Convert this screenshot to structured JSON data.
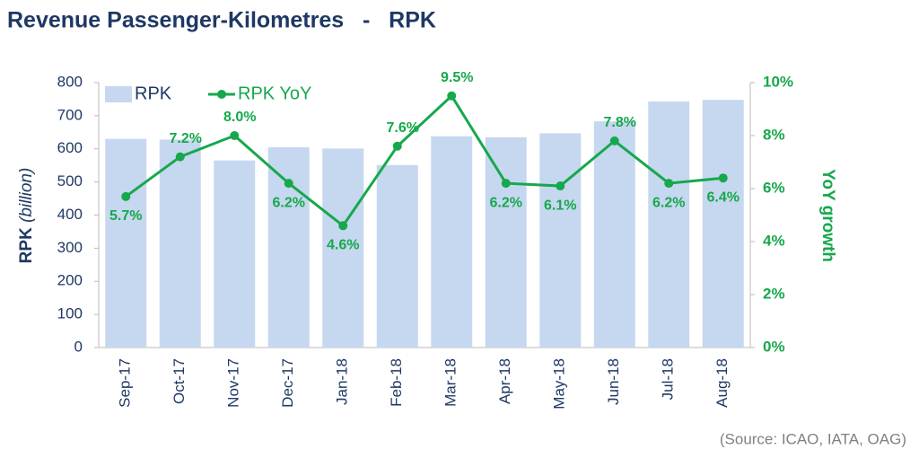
{
  "chart_data": {
    "type": "bar_line",
    "title": "Revenue Passenger-Kilometres   -   RPK",
    "categories": [
      "Sep-17",
      "Oct-17",
      "Nov-17",
      "Dec-17",
      "Jan-18",
      "Feb-18",
      "Mar-18",
      "Apr-18",
      "May-18",
      "Jun-18",
      "Jul-18",
      "Aug-18"
    ],
    "series": [
      {
        "name": "RPK",
        "type": "bar",
        "color": "#c6d7f0",
        "values": [
          630,
          628,
          565,
          605,
          601,
          551,
          638,
          635,
          647,
          683,
          743,
          748
        ]
      },
      {
        "name": "RPK YoY",
        "type": "line",
        "axis": "y2",
        "color": "#16a84c",
        "values": [
          5.7,
          7.2,
          8.0,
          6.2,
          4.6,
          7.6,
          9.5,
          6.2,
          6.1,
          7.8,
          6.2,
          6.4
        ],
        "value_labels": [
          "5.7%",
          "7.2%",
          "8.0%",
          "6.2%",
          "4.6%",
          "7.6%",
          "9.5%",
          "6.2%",
          "6.1%",
          "7.8%",
          "6.2%",
          "6.4%"
        ]
      }
    ],
    "ylim": [
      0,
      800
    ],
    "yticks": [
      0,
      100,
      200,
      300,
      400,
      500,
      600,
      700,
      800
    ],
    "y2lim": [
      0,
      10
    ],
    "y2ticks": [
      {
        "value": 0,
        "label": "0%"
      },
      {
        "value": 2,
        "label": "2%"
      },
      {
        "value": 4,
        "label": "4%"
      },
      {
        "value": 6,
        "label": "6%"
      },
      {
        "value": 8,
        "label": "8%"
      },
      {
        "value": 10,
        "label": "10%"
      }
    ],
    "y_label": "RPK",
    "y_label_unit": "(billion)",
    "y2_label": "YoY growth",
    "source": "(Source: ICAO, IATA, OAG)"
  }
}
